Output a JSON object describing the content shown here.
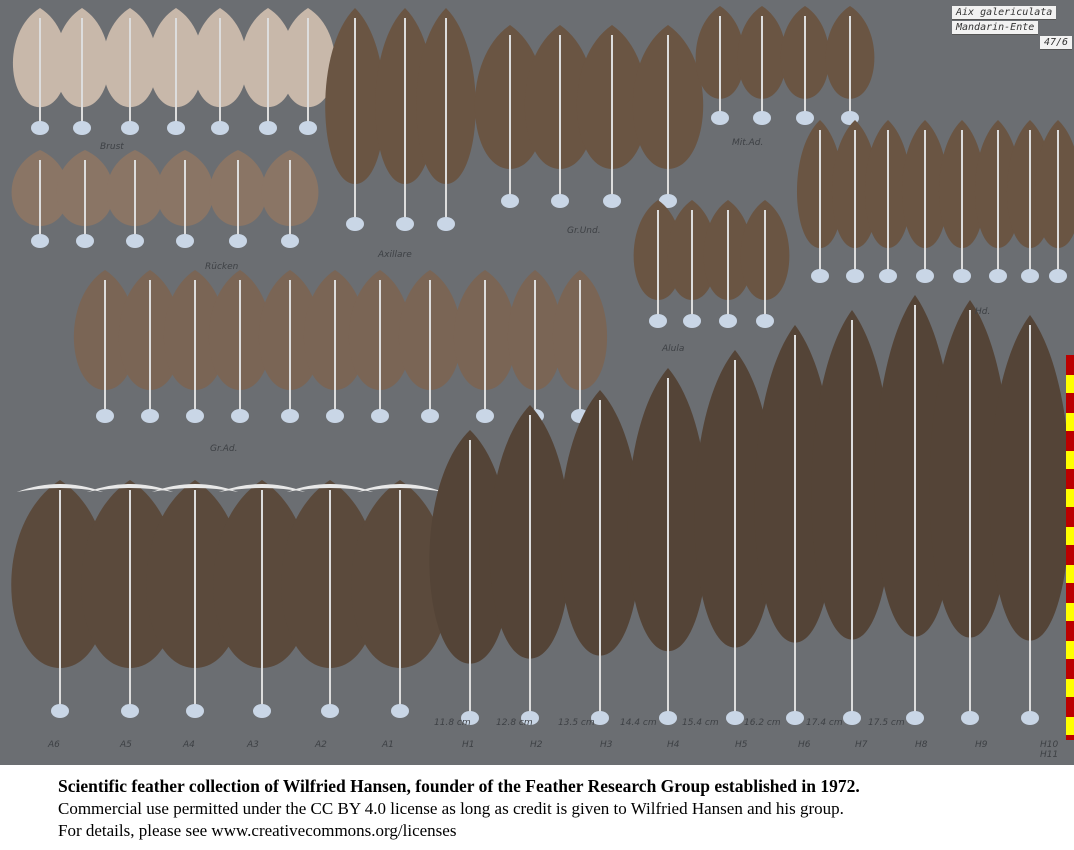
{
  "specimen_tag": {
    "species": "Aix galericulata",
    "common_name": "Mandarin-Ente",
    "number": "47/6"
  },
  "group_labels": [
    "Brust",
    "Rücken",
    "Axillare",
    "Gr.Und.",
    "Mit.Ad.",
    "Hd.",
    "Alula",
    "Gr.Ad."
  ],
  "feather_labels": [
    "A6",
    "A5",
    "A4",
    "A3",
    "A2",
    "A1",
    "H1",
    "H2",
    "H3",
    "H4",
    "H5",
    "H6",
    "H7",
    "H8",
    "H9",
    "H10 H11"
  ],
  "lengths": [
    "11.8 cm",
    "12.8 cm",
    "13.5 cm",
    "14.4 cm",
    "15.4 cm",
    "16.2 cm",
    "17.4 cm",
    "17.5 cm"
  ],
  "colors": {
    "background": "#6b6e72",
    "feather": "#6a5543"
  },
  "caption": {
    "line1": "Scientific feather collection of Wilfried Hansen, founder of the Feather Research Group established in 1972.",
    "line2": "Commercial use permitted under the CC BY 4.0 license as long as credit is given to Wilfried Hansen and his group.",
    "line3": "For details, please see www.creativecommons.org/licenses"
  }
}
